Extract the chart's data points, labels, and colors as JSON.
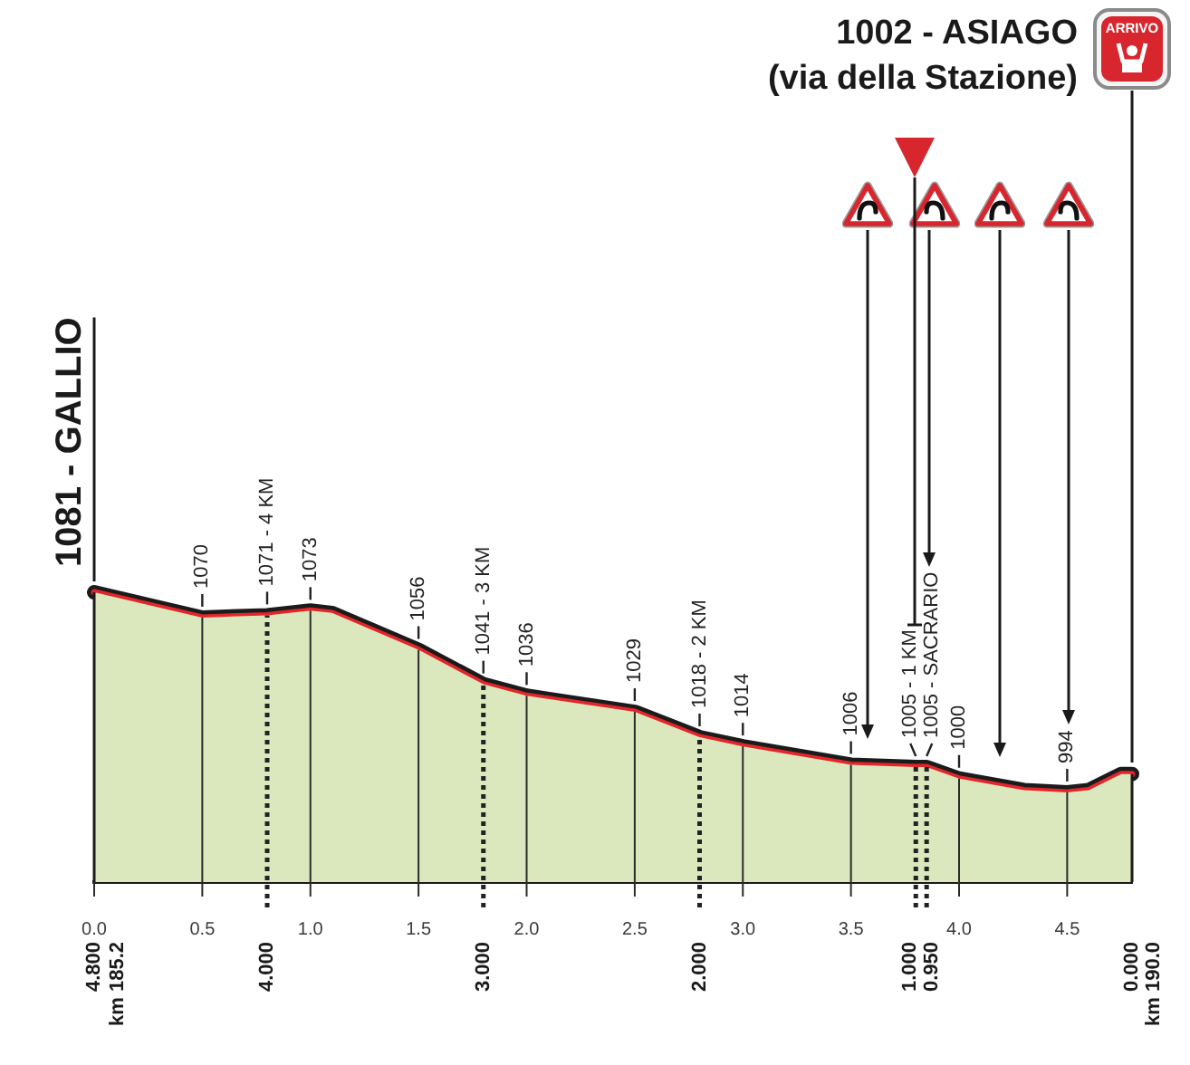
{
  "chart_data": {
    "type": "area",
    "x": [
      0,
      0.5,
      0.8,
      1.0,
      1.1,
      1.5,
      1.8,
      2.0,
      2.5,
      2.8,
      3.0,
      3.5,
      3.8,
      3.85,
      4.0,
      4.3,
      4.5,
      4.6,
      4.75,
      4.8
    ],
    "series": [
      {
        "color": "#dbe7bd",
        "values": [
          1081,
          1070,
          1071,
          1073,
          1072,
          1056,
          1041,
          1036,
          1029,
          1018,
          1014,
          1006,
          1005,
          1005,
          1000,
          995,
          994,
          995,
          1002,
          1002
        ],
        "value_labels": [
          null,
          "1070",
          "1071 - 4 KM",
          "1073",
          null,
          "1056",
          "1041 - 3 KM",
          "1036",
          "1029",
          "1018 - 2 KM",
          "1014",
          "1006",
          "1005 - 1 KM",
          "1005 - SACRARIO",
          "1000",
          null,
          "994",
          null,
          null,
          null
        ]
      },
      {
        "type": "line",
        "color": "#e3262b",
        "values": [
          1081,
          1070,
          1071,
          1073,
          1072,
          1056,
          1041,
          1036,
          1029,
          1018,
          1014,
          1006,
          1005,
          1005,
          1000,
          995,
          994,
          995,
          1002,
          1002
        ]
      }
    ],
    "xlim": [
      0,
      4.8
    ],
    "xticks": [
      {
        "value": 0,
        "label": "0.0"
      },
      0.5,
      {
        "value": 1,
        "label": "1.0"
      },
      1.5,
      {
        "value": 2,
        "label": "2.0"
      },
      2.5,
      {
        "value": 3,
        "label": "3.0"
      },
      3.5,
      {
        "value": 4,
        "label": "4.0"
      },
      4.5
    ],
    "x2lim": [
      4.8,
      0
    ],
    "x2ticks": [
      {
        "value": 4.8,
        "label": "4.800"
      },
      {
        "value": 4,
        "label": "4.000"
      },
      {
        "value": 3,
        "label": "3.000"
      },
      {
        "value": 2,
        "label": "2.000"
      },
      {
        "value": 1,
        "label": "1.000"
      },
      {
        "value": 0.95,
        "label": "0.950"
      },
      {
        "value": 0,
        "label": "0.000"
      }
    ],
    "ylim": [
      955,
      1081
    ],
    "tick_labels": "x",
    "grid": "x",
    "ref_lines": [
      {
        "axis": "x",
        "value": 0.5,
        "line_style": "solid",
        "color": "#2b2b2b"
      },
      {
        "axis": "x",
        "value": 1,
        "line_style": "solid",
        "color": "#2b2b2b"
      },
      {
        "axis": "x",
        "value": 1.5,
        "line_style": "solid",
        "color": "#2b2b2b"
      },
      {
        "axis": "x",
        "value": 2,
        "line_style": "solid",
        "color": "#2b2b2b"
      },
      {
        "axis": "x",
        "value": 2.5,
        "line_style": "solid",
        "color": "#2b2b2b"
      },
      {
        "axis": "x",
        "value": 3,
        "line_style": "solid",
        "color": "#2b2b2b"
      },
      {
        "axis": "x",
        "value": 3.5,
        "line_style": "solid",
        "color": "#2b2b2b"
      },
      {
        "axis": "x",
        "value": 4,
        "line_style": "solid",
        "color": "#2b2b2b"
      },
      {
        "axis": "x",
        "value": 4.5,
        "line_style": "solid",
        "color": "#2b2b2b"
      },
      {
        "axis": "x",
        "value": 0.8,
        "line_style": "dotted",
        "color": "#222222"
      },
      {
        "axis": "x",
        "value": 1.8,
        "line_style": "dotted",
        "color": "#222222"
      },
      {
        "axis": "x",
        "value": 2.8,
        "line_style": "dotted",
        "color": "#222222"
      },
      {
        "axis": "x",
        "value": 3.8,
        "line_style": "dotted",
        "color": "#222222"
      },
      {
        "axis": "x",
        "value": 3.85,
        "line_style": "dotted",
        "color": "#222222"
      }
    ],
    "annotations": [
      {
        "text": "1081 - GALLIO",
        "x": 0,
        "y": 1081
      },
      "1002 - ASIAGO\n(via della Stazione)",
      "ARRIVO",
      "km 185.2",
      "km 190.0"
    ]
  }
}
